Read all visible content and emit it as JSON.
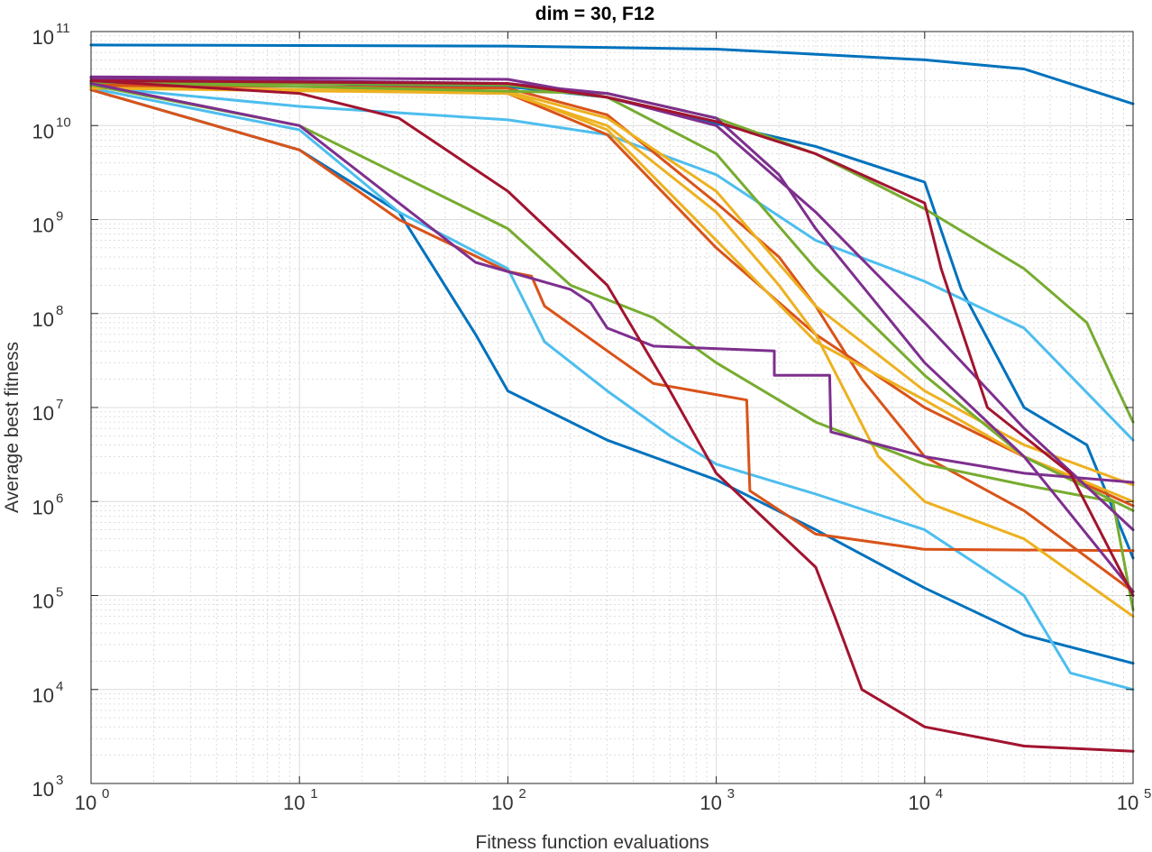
{
  "chart_data": {
    "type": "line",
    "title": "dim = 30,  F12",
    "xlabel": "Fitness function evaluations",
    "ylabel": "Average best fitness",
    "xscale": "log",
    "yscale": "log",
    "xlim": [
      1,
      100000
    ],
    "ylim": [
      1000,
      100000000000
    ],
    "grid": true,
    "x_ticks": [
      {
        "base": "10",
        "exp": "0",
        "value": 1
      },
      {
        "base": "10",
        "exp": "1",
        "value": 10
      },
      {
        "base": "10",
        "exp": "2",
        "value": 100
      },
      {
        "base": "10",
        "exp": "3",
        "value": 1000
      },
      {
        "base": "10",
        "exp": "4",
        "value": 10000
      },
      {
        "base": "10",
        "exp": "5",
        "value": 100000
      }
    ],
    "y_ticks": [
      {
        "base": "10",
        "exp": "3",
        "value": 1000
      },
      {
        "base": "10",
        "exp": "4",
        "value": 10000
      },
      {
        "base": "10",
        "exp": "5",
        "value": 100000
      },
      {
        "base": "10",
        "exp": "6",
        "value": 1000000
      },
      {
        "base": "10",
        "exp": "7",
        "value": 10000000
      },
      {
        "base": "10",
        "exp": "8",
        "value": 100000000
      },
      {
        "base": "10",
        "exp": "9",
        "value": 1000000000
      },
      {
        "base": "10",
        "exp": "10",
        "value": 10000000000
      },
      {
        "base": "10",
        "exp": "11",
        "value": 100000000000
      }
    ],
    "series": [
      {
        "name": "blue-top",
        "color": "#0072bd",
        "points": [
          [
            1,
            72000000000.0
          ],
          [
            10,
            71000000000.0
          ],
          [
            100,
            70000000000.0
          ],
          [
            1000,
            65000000000.0
          ],
          [
            10000,
            50000000000.0
          ],
          [
            30000,
            40000000000.0
          ],
          [
            100000,
            17000000000.0
          ]
        ]
      },
      {
        "name": "blue-early-drop",
        "color": "#0072bd",
        "points": [
          [
            1,
            24000000000.0
          ],
          [
            10,
            5500000000.0
          ],
          [
            30,
            1200000000.0
          ],
          [
            70,
            60000000.0
          ],
          [
            100,
            15000000.0
          ],
          [
            300,
            4500000.0
          ],
          [
            1000,
            1700000.0
          ],
          [
            3000,
            500000.0
          ],
          [
            10000,
            120000.0
          ],
          [
            30000,
            38000.0
          ],
          [
            100000,
            19000.0
          ]
        ]
      },
      {
        "name": "blue-late-drop",
        "color": "#0072bd",
        "points": [
          [
            1,
            28000000000.0
          ],
          [
            10,
            28000000000.0
          ],
          [
            100,
            26000000000.0
          ],
          [
            300,
            20000000000.0
          ],
          [
            1000,
            10500000000.0
          ],
          [
            3000,
            6000000000.0
          ],
          [
            10000,
            2500000000.0
          ],
          [
            15000,
            180000000.0
          ],
          [
            30000,
            10000000.0
          ],
          [
            60000,
            4000000.0
          ],
          [
            100000,
            250000.0
          ]
        ]
      },
      {
        "name": "cyan-slow",
        "color": "#4dbeee",
        "points": [
          [
            1,
            26000000000.0
          ],
          [
            10,
            16000000000.0
          ],
          [
            100,
            11500000000.0
          ],
          [
            300,
            8000000000.0
          ],
          [
            1000,
            3000000000.0
          ],
          [
            3000,
            600000000.0
          ],
          [
            10000,
            220000000.0
          ],
          [
            30000,
            70000000.0
          ],
          [
            100000,
            4500000.0
          ]
        ]
      },
      {
        "name": "cyan-fast",
        "color": "#4dbeee",
        "points": [
          [
            1,
            25000000000.0
          ],
          [
            10,
            9000000000.0
          ],
          [
            30,
            1200000000.0
          ],
          [
            100,
            300000000.0
          ],
          [
            150,
            50000000.0
          ],
          [
            300,
            15000000.0
          ],
          [
            600,
            5000000.0
          ],
          [
            1000,
            2500000.0
          ],
          [
            3000,
            1200000.0
          ],
          [
            10000,
            500000.0
          ],
          [
            30000,
            100000.0
          ],
          [
            50000,
            15000.0
          ],
          [
            100000,
            10000.0
          ]
        ]
      },
      {
        "name": "orange-red-early",
        "color": "#d95319",
        "points": [
          [
            1,
            24000000000.0
          ],
          [
            10,
            5500000000.0
          ],
          [
            30,
            1000000000.0
          ],
          [
            100,
            280000000.0
          ],
          [
            130,
            250000000.0
          ],
          [
            150,
            120000000.0
          ],
          [
            300,
            40000000.0
          ],
          [
            500,
            18000000.0
          ],
          [
            1400,
            12000000.0
          ],
          [
            1450,
            1300000.0
          ],
          [
            3000,
            450000.0
          ],
          [
            10000,
            310000.0
          ],
          [
            100000,
            300000.0
          ]
        ]
      },
      {
        "name": "orange-red-mid",
        "color": "#d95319",
        "points": [
          [
            1,
            27000000000.0
          ],
          [
            100,
            25000000000.0
          ],
          [
            300,
            13000000000.0
          ],
          [
            1000,
            1500000000.0
          ],
          [
            2000,
            400000000.0
          ],
          [
            3000,
            120000000.0
          ],
          [
            5000,
            20000000.0
          ],
          [
            10000,
            3000000.0
          ],
          [
            30000,
            800000.0
          ],
          [
            100000,
            110000.0
          ]
        ]
      },
      {
        "name": "orange-red-late",
        "color": "#d95319",
        "points": [
          [
            1,
            26000000000.0
          ],
          [
            100,
            22000000000.0
          ],
          [
            300,
            8000000000.0
          ],
          [
            1000,
            500000000.0
          ],
          [
            3000,
            60000000.0
          ],
          [
            10000,
            10000000.0
          ],
          [
            30000,
            3000000.0
          ],
          [
            100000,
            900000.0
          ]
        ]
      },
      {
        "name": "yellow-a",
        "color": "#edb120",
        "points": [
          [
            1,
            25000000000.0
          ],
          [
            100,
            22000000000.0
          ],
          [
            300,
            10000000000.0
          ],
          [
            1000,
            1200000000.0
          ],
          [
            2000,
            200000000.0
          ],
          [
            3000,
            60000000.0
          ],
          [
            6000,
            3000000.0
          ],
          [
            10000,
            1000000.0
          ],
          [
            30000,
            400000.0
          ],
          [
            100000,
            60000.0
          ]
        ]
      },
      {
        "name": "yellow-b",
        "color": "#edb120",
        "points": [
          [
            1,
            25000000000.0
          ],
          [
            100,
            23000000000.0
          ],
          [
            300,
            12000000000.0
          ],
          [
            1000,
            2000000000.0
          ],
          [
            3000,
            120000000.0
          ],
          [
            10000,
            15000000.0
          ],
          [
            30000,
            4000000.0
          ],
          [
            100000,
            1500000.0
          ]
        ]
      },
      {
        "name": "yellow-c",
        "color": "#edb120",
        "points": [
          [
            1,
            25000000000.0
          ],
          [
            100,
            23000000000.0
          ],
          [
            300,
            9000000000.0
          ],
          [
            1000,
            600000000.0
          ],
          [
            3000,
            50000000.0
          ],
          [
            10000,
            12000000.0
          ],
          [
            30000,
            3000000.0
          ],
          [
            100000,
            1000000.0
          ]
        ]
      },
      {
        "name": "green-early",
        "color": "#77ac30",
        "points": [
          [
            1,
            27000000000.0
          ],
          [
            10,
            10000000000.0
          ],
          [
            30,
            3000000000.0
          ],
          [
            100,
            800000000.0
          ],
          [
            200,
            200000000.0
          ],
          [
            500,
            90000000.0
          ],
          [
            1000,
            30000000.0
          ],
          [
            3000,
            7000000.0
          ],
          [
            10000,
            2500000.0
          ],
          [
            30000,
            1500000.0
          ],
          [
            80000,
            1000000.0
          ],
          [
            100000,
            70000.0
          ]
        ]
      },
      {
        "name": "green-mid",
        "color": "#77ac30",
        "points": [
          [
            1,
            29000000000.0
          ],
          [
            100,
            27000000000.0
          ],
          [
            300,
            20000000000.0
          ],
          [
            1000,
            5000000000.0
          ],
          [
            3000,
            300000000.0
          ],
          [
            10000,
            22000000.0
          ],
          [
            30000,
            3000000.0
          ],
          [
            100000,
            800000.0
          ]
        ]
      },
      {
        "name": "green-late",
        "color": "#77ac30",
        "points": [
          [
            1,
            29000000000.0
          ],
          [
            300,
            22000000000.0
          ],
          [
            1000,
            12000000000.0
          ],
          [
            3000,
            5000000000.0
          ],
          [
            10000,
            1300000000.0
          ],
          [
            30000,
            300000000.0
          ],
          [
            60000,
            80000000.0
          ],
          [
            80000,
            20000000.0
          ],
          [
            100000,
            7000000.0
          ]
        ]
      },
      {
        "name": "purple-step",
        "color": "#7e2f8e",
        "points": [
          [
            1,
            28000000000.0
          ],
          [
            10,
            10000000000.0
          ],
          [
            30,
            1500000000.0
          ],
          [
            70,
            350000000.0
          ],
          [
            200,
            180000000.0
          ],
          [
            250,
            130000000.0
          ],
          [
            300,
            70000000.0
          ],
          [
            500,
            45000000.0
          ],
          [
            1900,
            40000000.0
          ],
          [
            1900,
            22000000.0
          ],
          [
            3500,
            22000000.0
          ],
          [
            3550,
            5500000.0
          ],
          [
            10000,
            3000000.0
          ],
          [
            30000,
            2000000.0
          ],
          [
            100000,
            1600000.0
          ]
        ]
      },
      {
        "name": "purple-mid",
        "color": "#7e2f8e",
        "points": [
          [
            1,
            32000000000.0
          ],
          [
            100,
            28000000000.0
          ],
          [
            300,
            22000000000.0
          ],
          [
            1000,
            12000000000.0
          ],
          [
            2000,
            3000000000.0
          ],
          [
            3000,
            800000000.0
          ],
          [
            10000,
            30000000.0
          ],
          [
            30000,
            3000000.0
          ],
          [
            100000,
            110000.0
          ]
        ]
      },
      {
        "name": "purple-late",
        "color": "#7e2f8e",
        "points": [
          [
            1,
            33000000000.0
          ],
          [
            100,
            31000000000.0
          ],
          [
            300,
            20000000000.0
          ],
          [
            1000,
            10000000000.0
          ],
          [
            3000,
            1200000000.0
          ],
          [
            10000,
            80000000.0
          ],
          [
            30000,
            6000000.0
          ],
          [
            100000,
            500000.0
          ]
        ]
      },
      {
        "name": "darkred-drop",
        "color": "#a2142f",
        "points": [
          [
            1,
            30000000000.0
          ],
          [
            10,
            22000000000.0
          ],
          [
            30,
            12000000000.0
          ],
          [
            100,
            2000000000.0
          ],
          [
            300,
            200000000.0
          ],
          [
            600,
            15000000.0
          ],
          [
            1000,
            2000000.0
          ],
          [
            3000,
            200000.0
          ],
          [
            3700,
            60000.0
          ],
          [
            5000,
            10000.0
          ],
          [
            10000,
            4000.0
          ],
          [
            30000,
            2500.0
          ],
          [
            100000,
            2200.0
          ]
        ]
      },
      {
        "name": "darkred-late",
        "color": "#a2142f",
        "points": [
          [
            1,
            30000000000.0
          ],
          [
            100,
            28000000000.0
          ],
          [
            300,
            20000000000.0
          ],
          [
            1000,
            11000000000.0
          ],
          [
            3000,
            5000000000.0
          ],
          [
            10000,
            1500000000.0
          ],
          [
            12000,
            300000000.0
          ],
          [
            20000,
            10000000.0
          ],
          [
            50000,
            2000000.0
          ],
          [
            100000,
            100000.0
          ]
        ]
      }
    ]
  }
}
